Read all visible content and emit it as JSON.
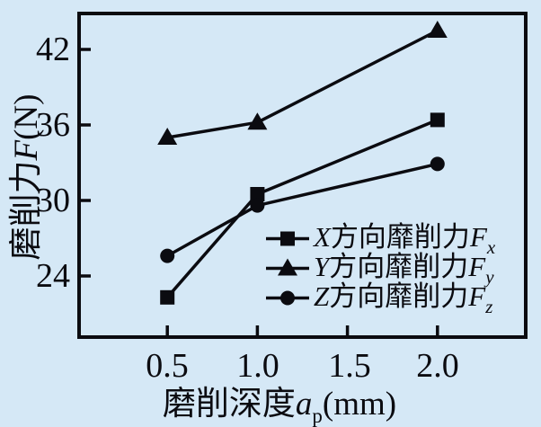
{
  "figure": {
    "background_color": "#d5e8f6",
    "ink_color": "#0b0b10"
  },
  "axes": {
    "y_label": {
      "cn": "磨削力",
      "sym": "F",
      "unit": "(N)"
    },
    "x_label": {
      "cn": "磨削深度",
      "sym": "a",
      "sub": "p",
      "unit": "(mm)"
    },
    "y_ticks": [
      "42",
      "36",
      "30",
      "24"
    ],
    "x_ticks": [
      "0.5",
      "1.0",
      "1.5",
      "2.0"
    ]
  },
  "legend": {
    "items": [
      {
        "marker": "square",
        "dir": "X",
        "cn": "方向靡削力",
        "sym": "F",
        "sub": "x"
      },
      {
        "marker": "triangle",
        "dir": "Y",
        "cn": "方向靡削力",
        "sym": "F",
        "sub": "y"
      },
      {
        "marker": "circle",
        "dir": "Z",
        "cn": "方向靡削力",
        "sym": "F",
        "sub": "z"
      }
    ]
  },
  "chart_data": {
    "type": "line",
    "x": [
      0.5,
      1.0,
      2.0
    ],
    "series": [
      {
        "name": "X方向靡削力Fx",
        "marker": "square",
        "values": [
          22.3,
          30.5,
          36.4
        ]
      },
      {
        "name": "Y方向靡削力Fy",
        "marker": "triangle",
        "values": [
          35.0,
          36.2,
          43.5
        ]
      },
      {
        "name": "Z方向靡削力Fz",
        "marker": "circle",
        "values": [
          25.6,
          29.6,
          32.9
        ]
      }
    ],
    "title": "",
    "xlabel": "磨削深度ap(mm)",
    "ylabel": "磨削力F(N)",
    "xlim": [
      0,
      2.5
    ],
    "ylim": [
      19,
      45
    ],
    "xticks": [
      0.5,
      1.0,
      1.5,
      2.0
    ],
    "yticks": [
      24,
      30,
      36,
      42
    ],
    "grid": false,
    "line_color": "#0b0b10",
    "legend_position": "inside-lower-right"
  }
}
